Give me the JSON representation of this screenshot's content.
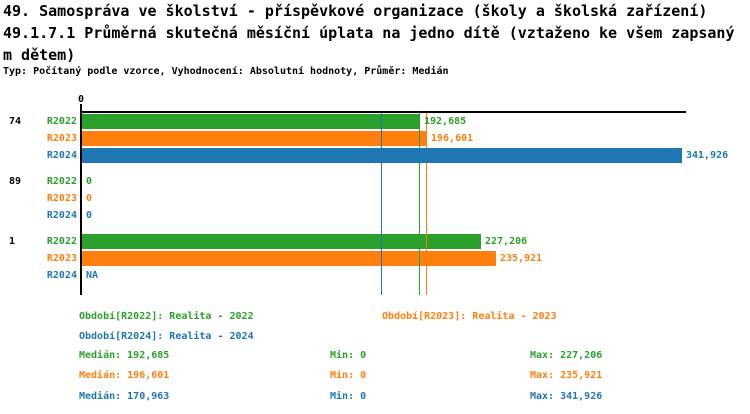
{
  "colors": {
    "R2022": "#2ca02c",
    "R2023": "#ff7f0e",
    "R2024": "#1f77b4",
    "axis": "#000000"
  },
  "chart_data": {
    "type": "bar",
    "orientation": "horizontal",
    "title": "49. Samospráva ve školství - příspěvkové organizace (školy a školská zařízení)",
    "subtitle_line1": "49.1.7.1 Průměrná skutečná měsíční úplata na jedno dítě (vztaženo ke všem zapsaný",
    "subtitle_line2": "m dětem)",
    "meta": "Typ: Počítaný podle vzorce, Vyhodnocení: Absolutní hodnoty, Průměr: Medián",
    "x_axis": {
      "tick_label": "0",
      "tick_value": 0,
      "max_value": 341926,
      "xlim": [
        0,
        341926
      ],
      "grid": false
    },
    "series": [
      {
        "key": "R2022",
        "name": "Realita - 2022"
      },
      {
        "key": "R2023",
        "name": "Realita - 2023"
      },
      {
        "key": "R2024",
        "name": "Realita - 2024"
      }
    ],
    "groups": [
      {
        "label": "74",
        "values": [
          192685,
          196601,
          341926
        ],
        "display": [
          "192,685",
          "196,601",
          "341,926"
        ]
      },
      {
        "label": "89",
        "values": [
          0,
          0,
          0
        ],
        "display": [
          "0",
          "0",
          "0"
        ]
      },
      {
        "label": "1",
        "values": [
          227206,
          235921,
          null
        ],
        "display": [
          "227,206",
          "235,921",
          "NA"
        ]
      }
    ],
    "median_lines": [
      {
        "series": "R2022",
        "value": 192685
      },
      {
        "series": "R2023",
        "value": 196601
      },
      {
        "series": "R2024",
        "value": 170963
      }
    ]
  },
  "legend": {
    "items": [
      {
        "series": "R2022",
        "label": "Období[R2022]: Realita - 2022"
      },
      {
        "series": "R2023",
        "label": "Období[R2023]: Realita - 2023"
      },
      {
        "series": "R2024",
        "label": "Období[R2024]: Realita - 2024"
      }
    ]
  },
  "stats": {
    "labels": {
      "median": "Medián",
      "min": "Min",
      "max": "Max"
    },
    "rows": [
      {
        "series": "R2022",
        "median": "192,685",
        "min": "0",
        "max": "227,206"
      },
      {
        "series": "R2023",
        "median": "196,601",
        "min": "0",
        "max": "235,921"
      },
      {
        "series": "R2024",
        "median": "170,963",
        "min": "0",
        "max": "341,926"
      }
    ]
  }
}
